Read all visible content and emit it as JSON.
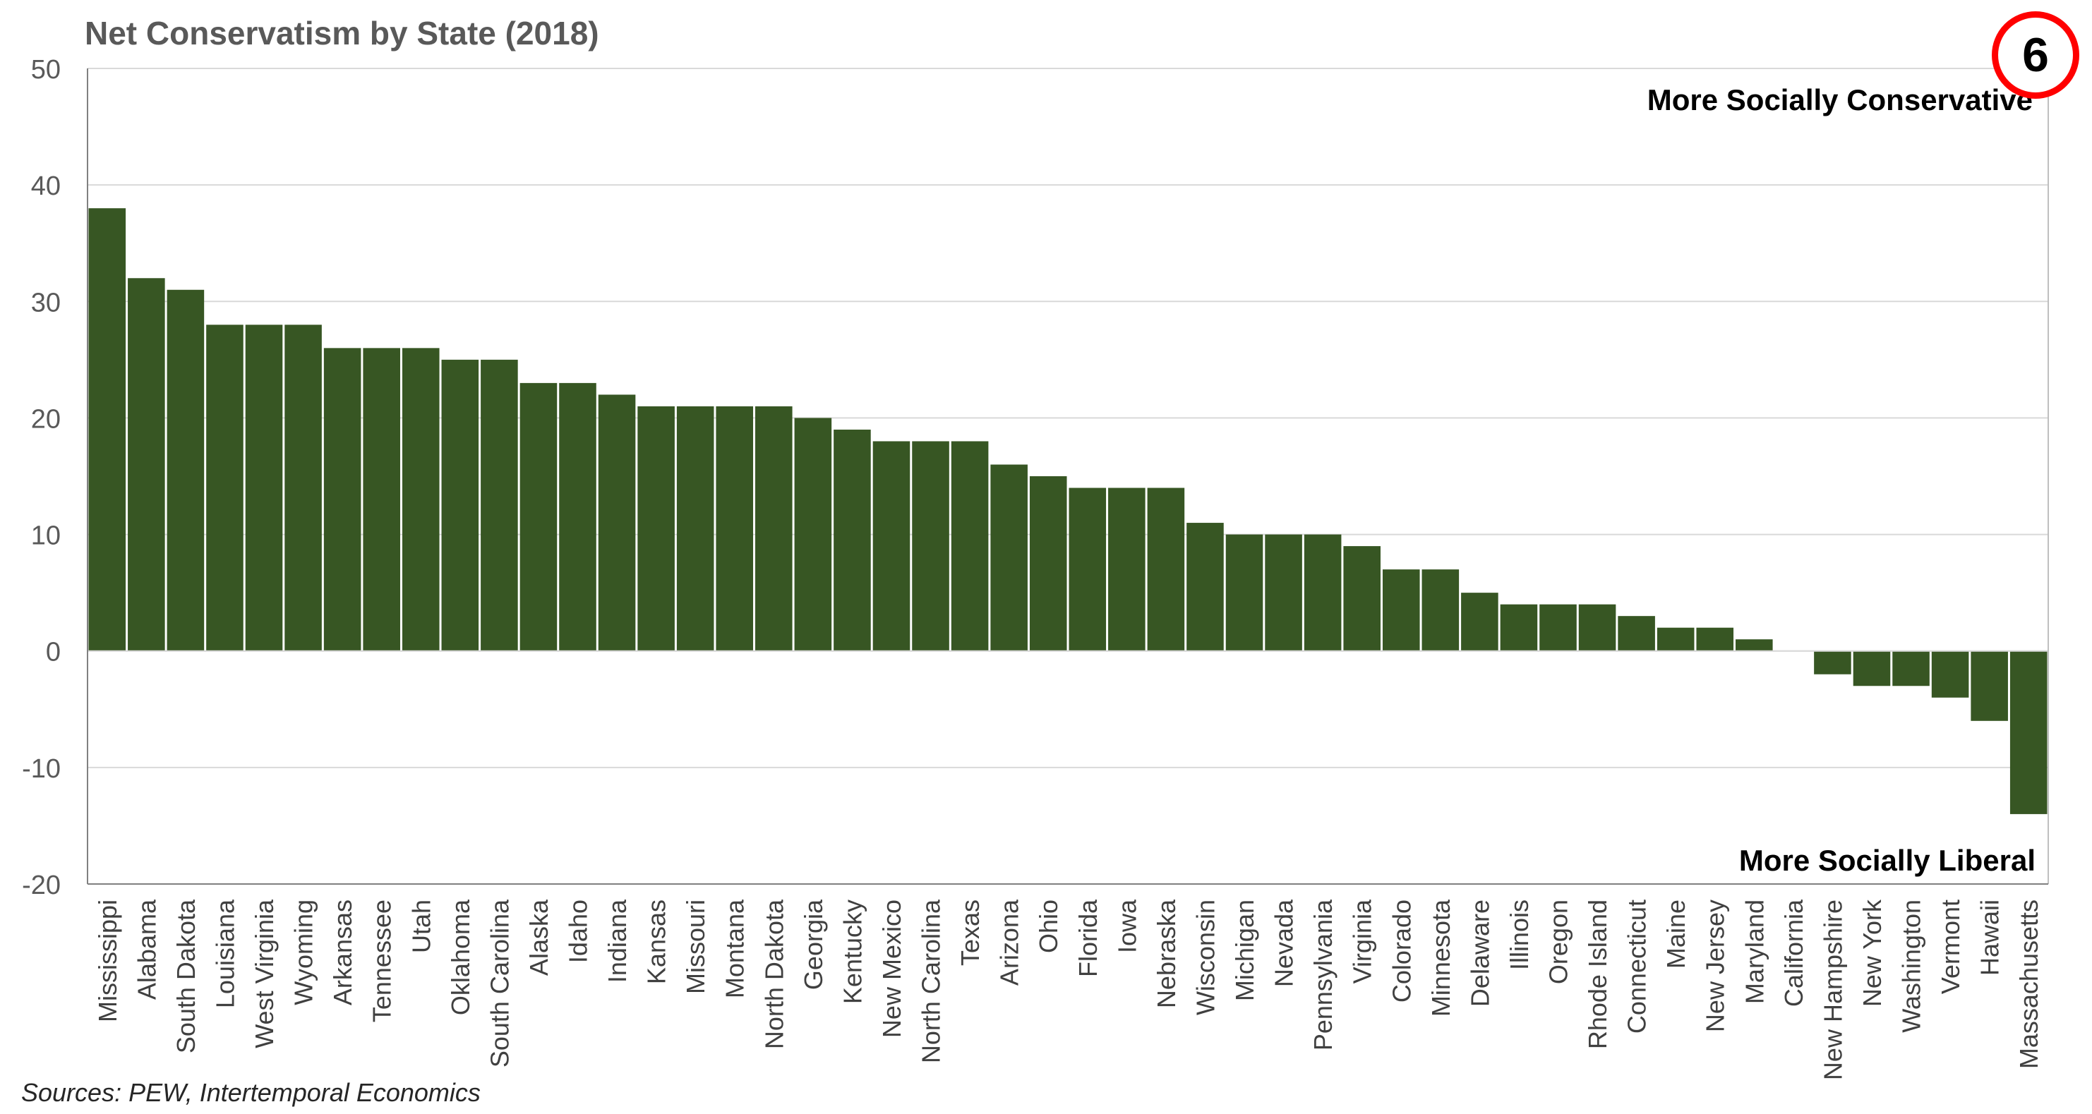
{
  "title": "Net Conservatism by State (2018)",
  "source": "Sources: PEW, Intertemporal Economics",
  "badge": "6",
  "annotations": {
    "top": "More Socially Conservative",
    "bottom": "More Socially Liberal"
  },
  "colors": {
    "bar": "#375623",
    "grid": "#d9d9d9",
    "badge_ring": "#ff0000"
  },
  "chart_data": {
    "type": "bar",
    "title": "Net Conservatism by State (2018)",
    "xlabel": "",
    "ylabel": "",
    "ylim": [
      -20,
      50
    ],
    "yticks": [
      -20,
      -10,
      0,
      10,
      20,
      30,
      40,
      50
    ],
    "grid": true,
    "categories": [
      "Mississippi",
      "Alabama",
      "South Dakota",
      "Louisiana",
      "West Virginia",
      "Wyoming",
      "Arkansas",
      "Tennessee",
      "Utah",
      "Oklahoma",
      "South Carolina",
      "Alaska",
      "Idaho",
      "Indiana",
      "Kansas",
      "Missouri",
      "Montana",
      "North Dakota",
      "Georgia",
      "Kentucky",
      "New Mexico",
      "North Carolina",
      "Texas",
      "Arizona",
      "Ohio",
      "Florida",
      "Iowa",
      "Nebraska",
      "Wisconsin",
      "Michigan",
      "Nevada",
      "Pennsylvania",
      "Virginia",
      "Colorado",
      "Minnesota",
      "Delaware",
      "Illinois",
      "Oregon",
      "Rhode Island",
      "Connecticut",
      "Maine",
      "New Jersey",
      "Maryland",
      "California",
      "New Hampshire",
      "New York",
      "Washington",
      "Vermont",
      "Hawaii",
      "Massachusetts"
    ],
    "values": [
      38,
      32,
      31,
      28,
      28,
      28,
      26,
      26,
      26,
      25,
      25,
      23,
      23,
      22,
      21,
      21,
      21,
      21,
      20,
      19,
      18,
      18,
      18,
      16,
      15,
      14,
      14,
      14,
      11,
      10,
      10,
      10,
      9,
      7,
      7,
      5,
      4,
      4,
      4,
      3,
      2,
      2,
      1,
      0,
      -2,
      -3,
      -3,
      -4,
      -6,
      -14
    ]
  }
}
